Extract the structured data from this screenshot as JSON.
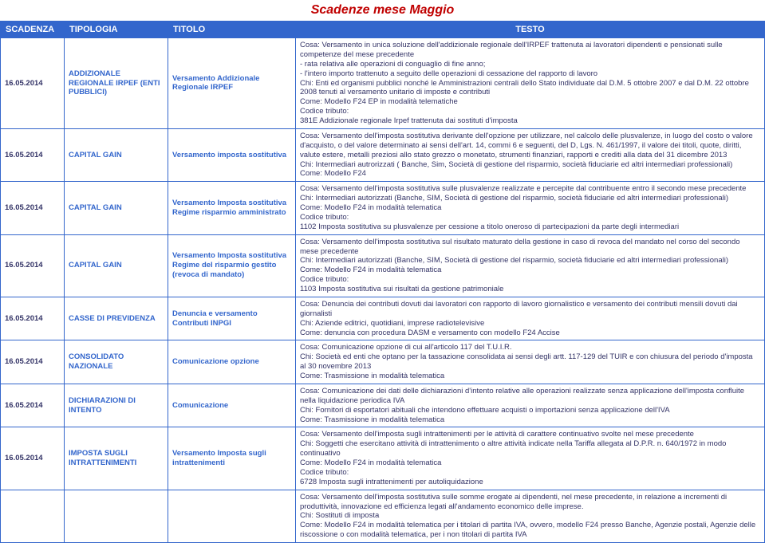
{
  "title": "Scadenze mese Maggio",
  "headers": {
    "scadenza": "SCADENZA",
    "tipologia": "TIPOLOGIA",
    "titolo": "TITOLO",
    "testo": "TESTO"
  },
  "rows": [
    {
      "scadenza": "16.05.2014",
      "tipologia": "ADDIZIONALE REGIONALE IRPEF (ENTI PUBBLICI)",
      "titolo": "Versamento Addizionale Regionale IRPEF",
      "testo": "Cosa: Versamento in unica soluzione dell'addizionale regionale dell'IRPEF trattenuta ai lavoratori dipendenti e pensionati sulle competenze del mese precedente\n- rata relativa alle operazioni di conguaglio di fine anno;\n- l'intero importo trattenuto a seguito delle operazioni di cessazione del rapporto di lavoro\nChi: Enti ed organismi pubblici nonché le Amministrazioni centrali dello Stato individuate dal D.M. 5 ottobre 2007 e dal D.M. 22 ottobre 2008 tenuti al versamento unitario di imposte e contributi\nCome: Modello F24 EP in modalità telematiche\nCodice tributo:\n381E Addizionale regionale Irpef trattenuta dai sostituti d'imposta"
    },
    {
      "scadenza": "16.05.2014",
      "tipologia": "CAPITAL GAIN",
      "titolo": "Versamento imposta sostitutiva",
      "testo": "Cosa: Versamento dell'imposta sostitutiva derivante dell'opzione per utilizzare, nel calcolo delle plusvalenze, in luogo del costo o valore d'acquisto, o del valore determinato ai sensi dell'art. 14, commi 6 e seguenti, del D, Lgs. N. 461/1997, il valore dei titoli, quote, diritti, valute estere, metalli preziosi allo stato grezzo o monetato, strumenti finanziari, rapporti e crediti alla data del 31 dicembre 2013\nChi: Intermediari autrorizzati ( Banche, Sim, Società di gestione del risparmio, società fiduciarie ed altri intermediari professionali)\nCome: Modello F24"
    },
    {
      "scadenza": "16.05.2014",
      "tipologia": "CAPITAL GAIN",
      "titolo": "Versamento Imposta sostitutiva Regime risparmio amministrato",
      "testo": "Cosa: Versamento dell'imposta sostitutiva sulle plusvalenze realizzate e percepite dal contribuente entro il secondo mese precedente\nChi: Intermediari autorizzati (Banche, SIM, Società di gestione del risparmio, società fiduciarie ed altri intermediari professionali)\nCome: Modello F24 in modalità telematica\nCodice tributo:\n1102 Imposta sostitutiva su plusvalenze per cessione a titolo oneroso di partecipazioni da parte degli intermediari"
    },
    {
      "scadenza": "16.05.2014",
      "tipologia": "CAPITAL GAIN",
      "titolo": "Versamento Imposta sostitutiva Regime del risparmio gestito (revoca di mandato)",
      "testo": "Cosa: Versamento dell'imposta sostitutiva sul risultato maturato della gestione in caso di revoca del mandato nel corso del secondo mese precedente\nChi: Intermediari autorizzati (Banche, SIM, Società di gestione del risparmio, società fiduciarie ed altri intermediari professionali)\nCome: Modello F24 in modalità telematica\nCodice tributo:\n1103 Imposta sostitutiva sui risultati da gestione patrimoniale"
    },
    {
      "scadenza": "16.05.2014",
      "tipologia": "CASSE DI PREVIDENZA",
      "titolo": "Denuncia e versamento Contributi INPGI",
      "testo": "Cosa: Denuncia dei contributi dovuti dai lavoratori con rapporto di lavoro giornalistico e versamento dei contributi mensili dovuti dai giornalisti\nChi: Aziende editrici, quotidiani, imprese radiotelevisive\nCome: denuncia con procedura DASM e versamento con modello F24 Accise"
    },
    {
      "scadenza": "16.05.2014",
      "tipologia": "CONSOLIDATO NAZIONALE",
      "titolo": "Comunicazione opzione",
      "testo": "Cosa: Comunicazione opzione di cui all'articolo 117 del T.U.I.R.\nChi: Società ed enti che optano per la tassazione consolidata ai sensi degli artt. 117-129 del TUIR e con chiusura del periodo d'imposta al 30 novembre 2013\nCome: Trasmissione in modalità telematica"
    },
    {
      "scadenza": "16.05.2014",
      "tipologia": "DICHIARAZIONI DI INTENTO",
      "titolo": "Comunicazione",
      "testo": "Cosa: Comunicazione dei dati delle dichiarazioni d'intento relative alle operazioni realizzate senza applicazione dell'imposta confluite nella liquidazione periodica IVA\nChi: Fornitori di esportatori abituali che intendono effettuare acquisti o importazioni senza applicazione dell'IVA\nCome: Trasmissione in modalità telematica"
    },
    {
      "scadenza": "16.05.2014",
      "tipologia": "IMPOSTA SUGLI INTRATTENIMENTI",
      "titolo": "Versamento Imposta sugli intrattenimenti",
      "testo": "Cosa: Versamento dell'imposta sugli intrattenimenti per le attività di carattere continuativo svolte nel mese precedente\nChi: Soggetti che esercitano attività di intrattenimento o altre attività indicate nella Tariffa allegata al D.P.R. n. 640/1972 in modo continuativo\nCome: Modello F24 in modalità telematica\nCodice tributo:\n6728 Imposta sugli intrattenimenti per autoliquidazione"
    },
    {
      "scadenza": "",
      "tipologia": "",
      "titolo": "",
      "testo": "Cosa: Versamento dell'imposta sostitutiva sulle somme erogate ai dipendenti, nel mese precedente, in relazione a incrementi di produttività, innovazione ed efficienza legati all'andamento economico delle imprese.\nChi: Sostituti di imposta\nCome: Modello F24 in modalità telematica per i titolari di partita IVA, ovvero, modello F24 presso Banche, Agenzie postali, Agenzie delle riscossione o con modalità telematica, per i non titolari di partita IVA"
    }
  ]
}
